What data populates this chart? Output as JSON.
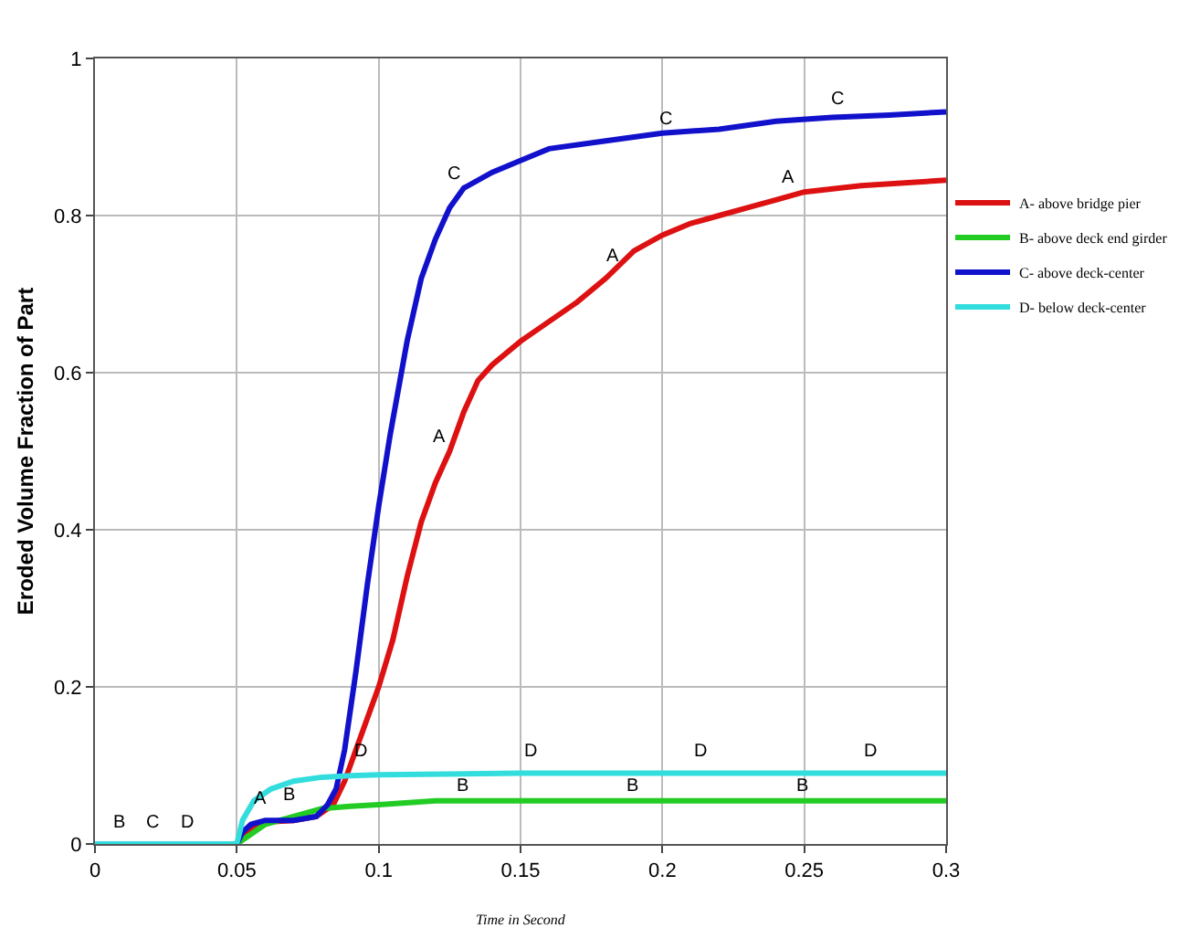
{
  "chart_data": {
    "type": "line",
    "xlabel": "Time in Second",
    "ylabel": "Eroded Volume Fraction of Part",
    "xlim": [
      0,
      0.3
    ],
    "ylim": [
      0,
      1
    ],
    "xticks": [
      0,
      0.05,
      0.1,
      0.15,
      0.2,
      0.25,
      0.3
    ],
    "yticks": [
      0,
      0.2,
      0.4,
      0.6,
      0.8,
      1
    ],
    "grid": true,
    "legend": "right",
    "marker": "none",
    "line_style": "solid",
    "series": [
      {
        "name": "A- above bridge pier",
        "color": "#dd1111",
        "x": [
          0,
          0.05,
          0.055,
          0.06,
          0.07,
          0.078,
          0.084,
          0.088,
          0.092,
          0.1,
          0.105,
          0.11,
          0.115,
          0.12,
          0.125,
          0.13,
          0.135,
          0.14,
          0.15,
          0.16,
          0.17,
          0.18,
          0.19,
          0.2,
          0.21,
          0.22,
          0.23,
          0.24,
          0.25,
          0.27,
          0.3
        ],
        "values": [
          0,
          0,
          0.02,
          0.028,
          0.03,
          0.035,
          0.05,
          0.08,
          0.12,
          0.2,
          0.26,
          0.34,
          0.41,
          0.46,
          0.5,
          0.55,
          0.59,
          0.61,
          0.64,
          0.665,
          0.69,
          0.72,
          0.755,
          0.775,
          0.79,
          0.8,
          0.81,
          0.82,
          0.83,
          0.838,
          0.845
        ]
      },
      {
        "name": "B- above deck end girder",
        "color": "#22cc22",
        "x": [
          0,
          0.05,
          0.052,
          0.06,
          0.07,
          0.08,
          0.09,
          0.1,
          0.12,
          0.15,
          0.2,
          0.3
        ],
        "values": [
          0,
          0,
          0.005,
          0.025,
          0.035,
          0.045,
          0.048,
          0.05,
          0.055,
          0.055,
          0.055,
          0.055
        ]
      },
      {
        "name": "C- above deck-center",
        "color": "#1111cc",
        "x": [
          0,
          0.05,
          0.052,
          0.055,
          0.06,
          0.07,
          0.078,
          0.082,
          0.085,
          0.088,
          0.092,
          0.096,
          0.1,
          0.104,
          0.11,
          0.115,
          0.12,
          0.125,
          0.13,
          0.14,
          0.15,
          0.16,
          0.18,
          0.2,
          0.22,
          0.24,
          0.26,
          0.28,
          0.3
        ],
        "values": [
          0,
          0,
          0.015,
          0.025,
          0.03,
          0.03,
          0.035,
          0.05,
          0.07,
          0.12,
          0.22,
          0.33,
          0.43,
          0.52,
          0.64,
          0.72,
          0.77,
          0.81,
          0.835,
          0.855,
          0.87,
          0.885,
          0.895,
          0.905,
          0.91,
          0.92,
          0.925,
          0.928,
          0.932
        ]
      },
      {
        "name": "D- below deck-center",
        "color": "#33dddd",
        "x": [
          0,
          0.05,
          0.052,
          0.056,
          0.062,
          0.07,
          0.08,
          0.09,
          0.1,
          0.15,
          0.2,
          0.3
        ],
        "values": [
          0,
          0,
          0.03,
          0.055,
          0.07,
          0.08,
          0.085,
          0.087,
          0.088,
          0.09,
          0.09,
          0.09
        ]
      }
    ],
    "annotations": [
      {
        "text": "B",
        "x": 0.012,
        "y": 0.01
      },
      {
        "text": "C",
        "x": 0.024,
        "y": 0.01
      },
      {
        "text": "D",
        "x": 0.036,
        "y": 0.01
      },
      {
        "text": "A",
        "x": 0.062,
        "y": 0.04
      },
      {
        "text": "B",
        "x": 0.072,
        "y": 0.045
      },
      {
        "text": "D",
        "x": 0.097,
        "y": 0.1
      },
      {
        "text": "D",
        "x": 0.157,
        "y": 0.1
      },
      {
        "text": "D",
        "x": 0.217,
        "y": 0.1
      },
      {
        "text": "D",
        "x": 0.277,
        "y": 0.1
      },
      {
        "text": "B",
        "x": 0.133,
        "y": 0.055
      },
      {
        "text": "B",
        "x": 0.193,
        "y": 0.055
      },
      {
        "text": "B",
        "x": 0.253,
        "y": 0.055
      },
      {
        "text": "C",
        "x": 0.13,
        "y": 0.835
      },
      {
        "text": "C",
        "x": 0.205,
        "y": 0.905
      },
      {
        "text": "C",
        "x": 0.265,
        "y": 0.93
      },
      {
        "text": "A",
        "x": 0.125,
        "y": 0.5
      },
      {
        "text": "A",
        "x": 0.186,
        "y": 0.73
      },
      {
        "text": "A",
        "x": 0.248,
        "y": 0.83
      }
    ]
  }
}
